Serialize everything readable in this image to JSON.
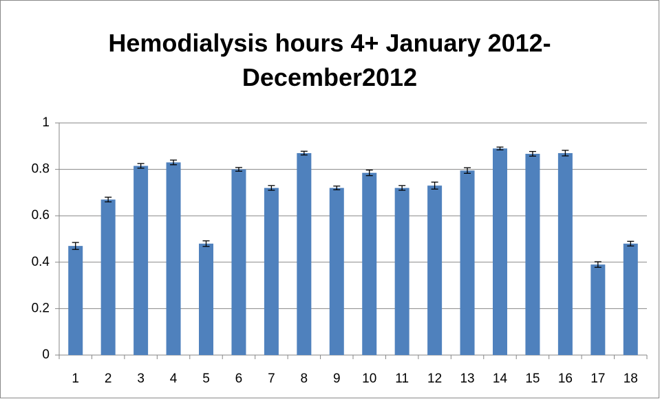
{
  "chart_data": {
    "type": "bar",
    "title": "Hemodialysis hours 4+ January 2012-December2012",
    "categories": [
      "1",
      "2",
      "3",
      "4",
      "5",
      "6",
      "7",
      "8",
      "9",
      "10",
      "11",
      "12",
      "13",
      "14",
      "15",
      "16",
      "17",
      "18"
    ],
    "values": [
      0.47,
      0.67,
      0.815,
      0.83,
      0.48,
      0.8,
      0.72,
      0.87,
      0.72,
      0.785,
      0.72,
      0.73,
      0.795,
      0.89,
      0.867,
      0.87,
      0.39,
      0.48
    ],
    "errors": [
      0.015,
      0.01,
      0.01,
      0.01,
      0.012,
      0.008,
      0.01,
      0.008,
      0.008,
      0.012,
      0.01,
      0.015,
      0.012,
      0.006,
      0.01,
      0.012,
      0.012,
      0.01
    ],
    "color": "#4f81bd",
    "ylim": [
      0,
      1
    ],
    "yticks": [
      0,
      0.2,
      0.4,
      0.6,
      0.8,
      1
    ],
    "grid": true
  }
}
